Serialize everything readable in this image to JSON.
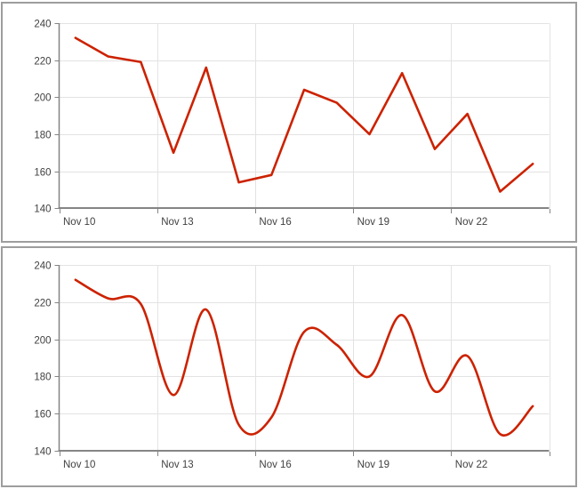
{
  "styles": {
    "line_color": "#cc2200",
    "grid_color": "#e3e3e3",
    "axis_color": "#858585",
    "label_color": "#414141",
    "panel_border_color": "#9d9d9d",
    "background": "#ffffff"
  },
  "x_axis": {
    "tick_labels": [
      "Nov 10",
      "Nov 13",
      "Nov 16",
      "Nov 19",
      "Nov 22"
    ],
    "tick_interval_days": 3
  },
  "y_axis": {
    "min": 140,
    "max": 240,
    "step": 20,
    "tick_labels": [
      "240",
      "220",
      "200",
      "180",
      "160",
      "140"
    ]
  },
  "chart_data": [
    {
      "type": "line",
      "interpolation": "linear",
      "title": "",
      "xlabel": "",
      "ylabel": "",
      "ylim": [
        140,
        240
      ],
      "grid": true,
      "legend": false,
      "series_color": "#cc2200",
      "categories": [
        "Nov 10",
        "Nov 11",
        "Nov 12",
        "Nov 13",
        "Nov 14",
        "Nov 15",
        "Nov 16",
        "Nov 17",
        "Nov 18",
        "Nov 19",
        "Nov 20",
        "Nov 21",
        "Nov 22",
        "Nov 23",
        "Nov 24"
      ],
      "values": [
        232,
        222,
        219,
        170,
        216,
        154,
        158,
        204,
        197,
        180,
        213,
        172,
        191,
        149,
        164
      ]
    },
    {
      "type": "line",
      "interpolation": "smooth",
      "title": "",
      "xlabel": "",
      "ylabel": "",
      "ylim": [
        140,
        240
      ],
      "grid": true,
      "legend": false,
      "series_color": "#cc2200",
      "categories": [
        "Nov 10",
        "Nov 11",
        "Nov 12",
        "Nov 13",
        "Nov 14",
        "Nov 15",
        "Nov 16",
        "Nov 17",
        "Nov 18",
        "Nov 19",
        "Nov 20",
        "Nov 21",
        "Nov 22",
        "Nov 23",
        "Nov 24"
      ],
      "values": [
        232,
        222,
        219,
        170,
        216,
        154,
        158,
        204,
        197,
        180,
        213,
        172,
        191,
        149,
        164
      ]
    }
  ]
}
